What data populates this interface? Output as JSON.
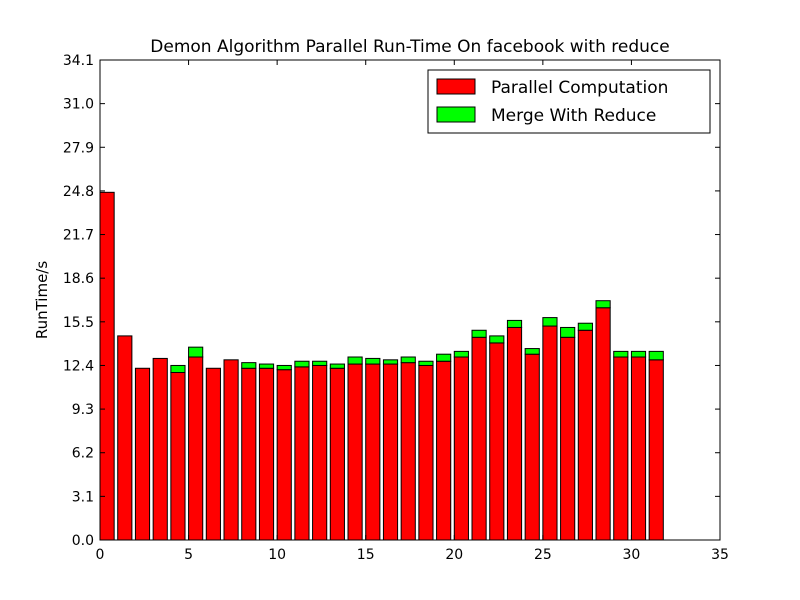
{
  "chart_data": {
    "type": "bar",
    "stacked": true,
    "title": "Demon Algorithm Parallel Run-Time On facebook with reduce",
    "xlabel": "",
    "ylabel": "RunTime/s",
    "xlim": [
      0,
      35
    ],
    "ylim": [
      0,
      34.1
    ],
    "x_ticks": [
      "0",
      "5",
      "10",
      "15",
      "20",
      "25",
      "30",
      "35"
    ],
    "y_ticks": [
      "0.0",
      "3.1",
      "6.2",
      "9.3",
      "12.4",
      "15.5",
      "18.6",
      "21.7",
      "24.8",
      "27.9",
      "31.0",
      "34.1"
    ],
    "bar_width": 0.8,
    "x": [
      0,
      1,
      2,
      3,
      4,
      5,
      6,
      7,
      8,
      9,
      10,
      11,
      12,
      13,
      14,
      15,
      16,
      17,
      18,
      19,
      20,
      21,
      22,
      23,
      24,
      25,
      26,
      27,
      28,
      29,
      30,
      31
    ],
    "series": [
      {
        "name": "Parallel Computation",
        "color": "#ff0000",
        "values": [
          24.7,
          14.5,
          12.2,
          12.9,
          11.9,
          13.0,
          12.2,
          12.8,
          12.2,
          12.2,
          12.1,
          12.3,
          12.4,
          12.2,
          12.5,
          12.5,
          12.5,
          12.6,
          12.4,
          12.7,
          13.0,
          14.4,
          14.0,
          15.1,
          13.2,
          15.2,
          14.4,
          14.9,
          16.5,
          13.0,
          13.0,
          12.8
        ]
      },
      {
        "name": "Merge With Reduce",
        "color": "#00ff00",
        "values": [
          0.0,
          0.0,
          0.0,
          0.0,
          0.5,
          0.7,
          0.0,
          0.0,
          0.4,
          0.3,
          0.3,
          0.4,
          0.3,
          0.3,
          0.5,
          0.4,
          0.3,
          0.4,
          0.3,
          0.5,
          0.4,
          0.5,
          0.5,
          0.5,
          0.4,
          0.6,
          0.7,
          0.5,
          0.5,
          0.4,
          0.4,
          0.6
        ]
      }
    ],
    "legend_position": "top-right",
    "grid": false
  }
}
